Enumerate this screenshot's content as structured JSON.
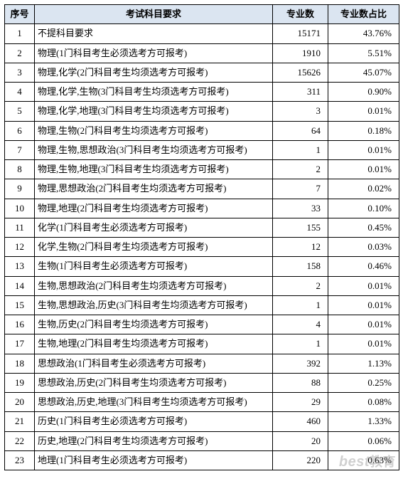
{
  "table": {
    "columns": [
      "序号",
      "考试科目要求",
      "专业数",
      "专业数占比"
    ],
    "rows": [
      {
        "idx": "1",
        "req": "不提科目要求",
        "cnt": "15171",
        "pct": "43.76%"
      },
      {
        "idx": "2",
        "req": "物理(1门科目考生必须选考方可报考)",
        "cnt": "1910",
        "pct": "5.51%"
      },
      {
        "idx": "3",
        "req": "物理,化学(2门科目考生均须选考方可报考)",
        "cnt": "15626",
        "pct": "45.07%"
      },
      {
        "idx": "4",
        "req": "物理,化学,生物(3门科目考生均须选考方可报考)",
        "cnt": "311",
        "pct": "0.90%"
      },
      {
        "idx": "5",
        "req": "物理,化学,地理(3门科目考生均须选考方可报考)",
        "cnt": "3",
        "pct": "0.01%"
      },
      {
        "idx": "6",
        "req": "物理,生物(2门科目考生均须选考方可报考)",
        "cnt": "64",
        "pct": "0.18%"
      },
      {
        "idx": "7",
        "req": "物理,生物,思想政治(3门科目考生均须选考方可报考)",
        "cnt": "1",
        "pct": "0.01%"
      },
      {
        "idx": "8",
        "req": "物理,生物,地理(3门科目考生均须选考方可报考)",
        "cnt": "2",
        "pct": "0.01%"
      },
      {
        "idx": "9",
        "req": "物理,思想政治(2门科目考生均须选考方可报考)",
        "cnt": "7",
        "pct": "0.02%"
      },
      {
        "idx": "10",
        "req": "物理,地理(2门科目考生均须选考方可报考)",
        "cnt": "33",
        "pct": "0.10%"
      },
      {
        "idx": "11",
        "req": "化学(1门科目考生必须选考方可报考)",
        "cnt": "155",
        "pct": "0.45%"
      },
      {
        "idx": "12",
        "req": "化学,生物(2门科目考生均须选考方可报考)",
        "cnt": "12",
        "pct": "0.03%"
      },
      {
        "idx": "13",
        "req": "生物(1门科目考生必须选考方可报考)",
        "cnt": "158",
        "pct": "0.46%"
      },
      {
        "idx": "14",
        "req": "生物,思想政治(2门科目考生均须选考方可报考)",
        "cnt": "2",
        "pct": "0.01%"
      },
      {
        "idx": "15",
        "req": "生物,思想政治,历史(3门科目考生均须选考方可报考)",
        "cnt": "1",
        "pct": "0.01%"
      },
      {
        "idx": "16",
        "req": "生物,历史(2门科目考生均须选考方可报考)",
        "cnt": "4",
        "pct": "0.01%"
      },
      {
        "idx": "17",
        "req": "生物,地理(2门科目考生均须选考方可报考)",
        "cnt": "1",
        "pct": "0.01%"
      },
      {
        "idx": "18",
        "req": "思想政治(1门科目考生必须选考方可报考)",
        "cnt": "392",
        "pct": "1.13%"
      },
      {
        "idx": "19",
        "req": "思想政治,历史(2门科目考生均须选考方可报考)",
        "cnt": "88",
        "pct": "0.25%"
      },
      {
        "idx": "20",
        "req": "思想政治,历史,地理(3门科目考生均须选考方可报考)",
        "cnt": "29",
        "pct": "0.08%"
      },
      {
        "idx": "21",
        "req": "历史(1门科目考生必须选考方可报考)",
        "cnt": "460",
        "pct": "1.33%"
      },
      {
        "idx": "22",
        "req": "历史,地理(2门科目考生均须选考方可报考)",
        "cnt": "20",
        "pct": "0.06%"
      },
      {
        "idx": "23",
        "req": "地理(1门科目考生必须选考方可报考)",
        "cnt": "220",
        "pct": "0.63%"
      }
    ],
    "header_bg": "#dbe5f1",
    "border_color": "#000000",
    "font_size_pt": 10
  },
  "watermark": {
    "en": "best",
    "cn": "教育"
  }
}
